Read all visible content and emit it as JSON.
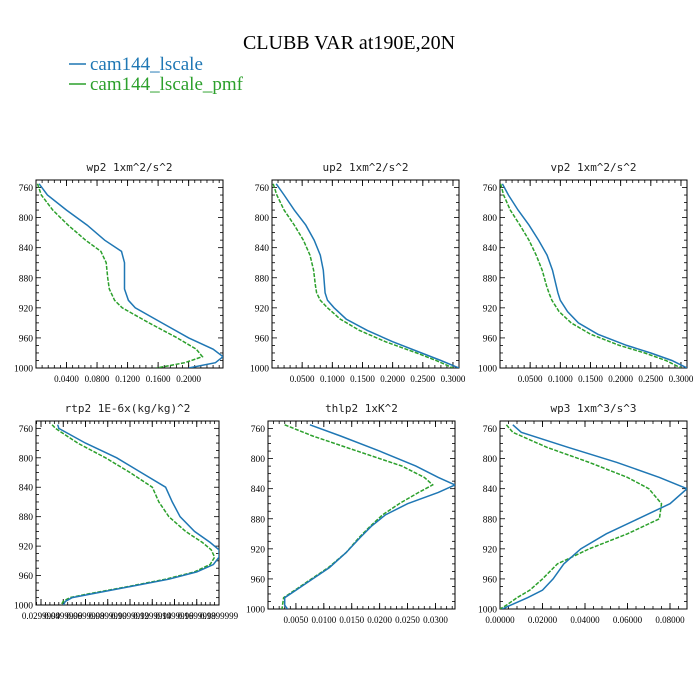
{
  "figure": {
    "title": "CLUBB VAR at190E,20N",
    "legend": [
      {
        "label": "cam144_lscale",
        "color": "#1f77b4",
        "dash": false
      },
      {
        "label": "cam144_lscale_pmf",
        "color": "#2ca02c",
        "dash": true
      }
    ]
  },
  "chart_data": [
    {
      "type": "line",
      "title": "wp2  1xm^2/s^2",
      "ylim": [
        1000,
        750
      ],
      "xlim": [
        0,
        0.245
      ],
      "yticks": [
        760,
        800,
        840,
        880,
        920,
        960,
        1000
      ],
      "xticks": [
        0.04,
        0.08,
        0.12,
        0.16,
        0.2
      ],
      "xticklabels": [
        "0.0400",
        "0.0800",
        "0.1200",
        "0.1600",
        "0.2000"
      ],
      "series": [
        {
          "name": "cam144_lscale",
          "y": [
            755,
            770,
            790,
            810,
            830,
            845,
            860,
            880,
            895,
            910,
            920,
            940,
            960,
            975,
            985,
            993,
            1000
          ],
          "x": [
            0.004,
            0.015,
            0.04,
            0.067,
            0.09,
            0.112,
            0.116,
            0.116,
            0.116,
            0.121,
            0.13,
            0.165,
            0.2,
            0.232,
            0.245,
            0.235,
            0.2
          ]
        },
        {
          "name": "cam144_lscale_pmf",
          "y": [
            755,
            770,
            790,
            810,
            830,
            845,
            860,
            880,
            895,
            910,
            920,
            940,
            960,
            975,
            985,
            993,
            1000
          ],
          "x": [
            0.002,
            0.007,
            0.022,
            0.042,
            0.065,
            0.085,
            0.092,
            0.094,
            0.096,
            0.103,
            0.113,
            0.148,
            0.185,
            0.21,
            0.218,
            0.195,
            0.158
          ]
        }
      ]
    },
    {
      "type": "line",
      "title": "up2  1xm^2/s^2",
      "ylim": [
        1000,
        750
      ],
      "xlim": [
        0,
        0.31
      ],
      "yticks": [
        760,
        800,
        840,
        880,
        920,
        960,
        1000
      ],
      "xticks": [
        0.05,
        0.1,
        0.15,
        0.2,
        0.25,
        0.3
      ],
      "xticklabels": [
        "0.0500",
        "0.1000",
        "0.1500",
        "0.2000",
        "0.2500",
        "0.3000"
      ],
      "series": [
        {
          "name": "cam144_lscale",
          "y": [
            755,
            770,
            790,
            810,
            830,
            850,
            870,
            890,
            900,
            910,
            920,
            935,
            950,
            965,
            980,
            990,
            1000
          ],
          "x": [
            0.007,
            0.02,
            0.037,
            0.056,
            0.07,
            0.08,
            0.085,
            0.087,
            0.088,
            0.092,
            0.103,
            0.123,
            0.158,
            0.2,
            0.248,
            0.28,
            0.31
          ]
        },
        {
          "name": "cam144_lscale_pmf",
          "y": [
            755,
            770,
            790,
            810,
            830,
            850,
            870,
            890,
            900,
            910,
            920,
            935,
            950,
            965,
            980,
            990,
            1000
          ],
          "x": [
            0.002,
            0.008,
            0.02,
            0.037,
            0.052,
            0.063,
            0.069,
            0.072,
            0.074,
            0.08,
            0.092,
            0.113,
            0.145,
            0.188,
            0.24,
            0.272,
            0.3
          ]
        }
      ]
    },
    {
      "type": "line",
      "title": "vp2  1xm^2/s^2",
      "ylim": [
        1000,
        750
      ],
      "xlim": [
        0,
        0.31
      ],
      "yticks": [
        760,
        800,
        840,
        880,
        920,
        960,
        1000
      ],
      "xticks": [
        0.05,
        0.1,
        0.15,
        0.2,
        0.25,
        0.3
      ],
      "xticklabels": [
        "0.0500",
        "0.1000",
        "0.1500",
        "0.2000",
        "0.2500",
        "0.3000"
      ],
      "series": [
        {
          "name": "cam144_lscale",
          "y": [
            755,
            770,
            790,
            810,
            830,
            850,
            870,
            890,
            900,
            910,
            925,
            940,
            955,
            970,
            980,
            990,
            1000
          ],
          "x": [
            0.004,
            0.014,
            0.03,
            0.048,
            0.064,
            0.078,
            0.087,
            0.093,
            0.096,
            0.1,
            0.112,
            0.13,
            0.162,
            0.21,
            0.25,
            0.285,
            0.31
          ]
        },
        {
          "name": "cam144_lscale_pmf",
          "y": [
            755,
            770,
            790,
            810,
            830,
            850,
            870,
            890,
            900,
            910,
            925,
            940,
            955,
            970,
            980,
            990,
            1000
          ],
          "x": [
            0.001,
            0.006,
            0.017,
            0.033,
            0.048,
            0.06,
            0.07,
            0.077,
            0.081,
            0.086,
            0.098,
            0.118,
            0.15,
            0.198,
            0.24,
            0.275,
            0.3
          ]
        }
      ]
    },
    {
      "type": "line",
      "title": "rtp2  1E-6x(kg/kg)^2",
      "ylim": [
        1000,
        750
      ],
      "xlim": [
        0.0255,
        0.19
      ],
      "yticks": [
        760,
        800,
        840,
        880,
        920,
        960,
        1000
      ],
      "xticks": [
        0.03,
        0.05,
        0.07,
        0.09,
        0.11,
        0.13,
        0.15,
        0.17,
        0.19
      ],
      "xticklabels": [
        "0.0299999",
        "0.0499999",
        "0.0699999",
        "0.0899999",
        "0.1099999",
        "0.1299999",
        "0.1499999",
        "0.1699999",
        "0.1899999"
      ],
      "series": [
        {
          "name": "cam144_lscale",
          "y": [
            755,
            760,
            780,
            800,
            820,
            840,
            860,
            880,
            900,
            915,
            925,
            935,
            945,
            955,
            965,
            975,
            985,
            990,
            995,
            1000
          ],
          "x": [
            0.045,
            0.046,
            0.07,
            0.098,
            0.12,
            0.142,
            0.148,
            0.155,
            0.168,
            0.182,
            0.19,
            0.19,
            0.185,
            0.17,
            0.145,
            0.11,
            0.075,
            0.058,
            0.052,
            0.05
          ]
        },
        {
          "name": "cam144_lscale_pmf",
          "y": [
            755,
            760,
            780,
            800,
            820,
            840,
            860,
            880,
            900,
            915,
            925,
            935,
            945,
            955,
            965,
            975,
            985,
            990,
            995,
            1000
          ],
          "x": [
            0.04,
            0.043,
            0.063,
            0.088,
            0.11,
            0.13,
            0.136,
            0.145,
            0.16,
            0.175,
            0.183,
            0.186,
            0.182,
            0.168,
            0.142,
            0.108,
            0.072,
            0.056,
            0.05,
            0.048
          ]
        }
      ]
    },
    {
      "type": "line",
      "title": "thlp2  1xK^2",
      "ylim": [
        1000,
        750
      ],
      "xlim": [
        0,
        0.0335
      ],
      "yticks": [
        760,
        800,
        840,
        880,
        920,
        960,
        1000
      ],
      "xticks": [
        0.005,
        0.01,
        0.015,
        0.02,
        0.025,
        0.03
      ],
      "xticklabels": [
        "0.0050",
        "0.0100",
        "0.0150",
        "0.0200",
        "0.0250",
        "0.0300"
      ],
      "series": [
        {
          "name": "cam144_lscale",
          "y": [
            755,
            770,
            790,
            810,
            825,
            835,
            845,
            860,
            875,
            890,
            905,
            925,
            945,
            960,
            975,
            985,
            995,
            1000
          ],
          "x": [
            0.0075,
            0.013,
            0.02,
            0.0265,
            0.0305,
            0.0335,
            0.0305,
            0.025,
            0.021,
            0.0185,
            0.0165,
            0.014,
            0.011,
            0.008,
            0.005,
            0.003,
            0.003,
            0.0035
          ]
        },
        {
          "name": "cam144_lscale_pmf",
          "y": [
            755,
            770,
            790,
            810,
            825,
            835,
            845,
            860,
            875,
            890,
            905,
            925,
            945,
            960,
            975,
            985,
            995,
            1000
          ],
          "x": [
            0.003,
            0.008,
            0.016,
            0.024,
            0.028,
            0.0295,
            0.027,
            0.0235,
            0.0205,
            0.0183,
            0.0163,
            0.014,
            0.0108,
            0.0078,
            0.0048,
            0.0028,
            0.0026,
            0.0025
          ]
        }
      ]
    },
    {
      "type": "line",
      "title": "wp3  1xm^3/s^3",
      "ylim": [
        1000,
        750
      ],
      "xlim": [
        0,
        0.088
      ],
      "yticks": [
        760,
        800,
        840,
        880,
        920,
        960,
        1000
      ],
      "xticks": [
        0,
        0.02,
        0.04,
        0.06,
        0.08
      ],
      "xticklabels": [
        "0.00000",
        "0.02000",
        "0.04000",
        "0.06000",
        "0.08000"
      ],
      "series": [
        {
          "name": "cam144_lscale",
          "y": [
            755,
            765,
            785,
            805,
            825,
            840,
            860,
            880,
            900,
            920,
            940,
            960,
            975,
            985,
            995,
            1000
          ],
          "x": [
            0.006,
            0.01,
            0.032,
            0.055,
            0.075,
            0.088,
            0.08,
            0.065,
            0.05,
            0.038,
            0.03,
            0.025,
            0.02,
            0.013,
            0.005,
            0.001
          ]
        },
        {
          "name": "cam144_lscale_pmf",
          "y": [
            755,
            765,
            785,
            805,
            825,
            840,
            860,
            880,
            900,
            920,
            940,
            960,
            975,
            985,
            995,
            1000
          ],
          "x": [
            0.003,
            0.006,
            0.022,
            0.042,
            0.06,
            0.07,
            0.076,
            0.075,
            0.06,
            0.042,
            0.027,
            0.02,
            0.014,
            0.008,
            0.003,
            0.0
          ]
        }
      ]
    }
  ]
}
